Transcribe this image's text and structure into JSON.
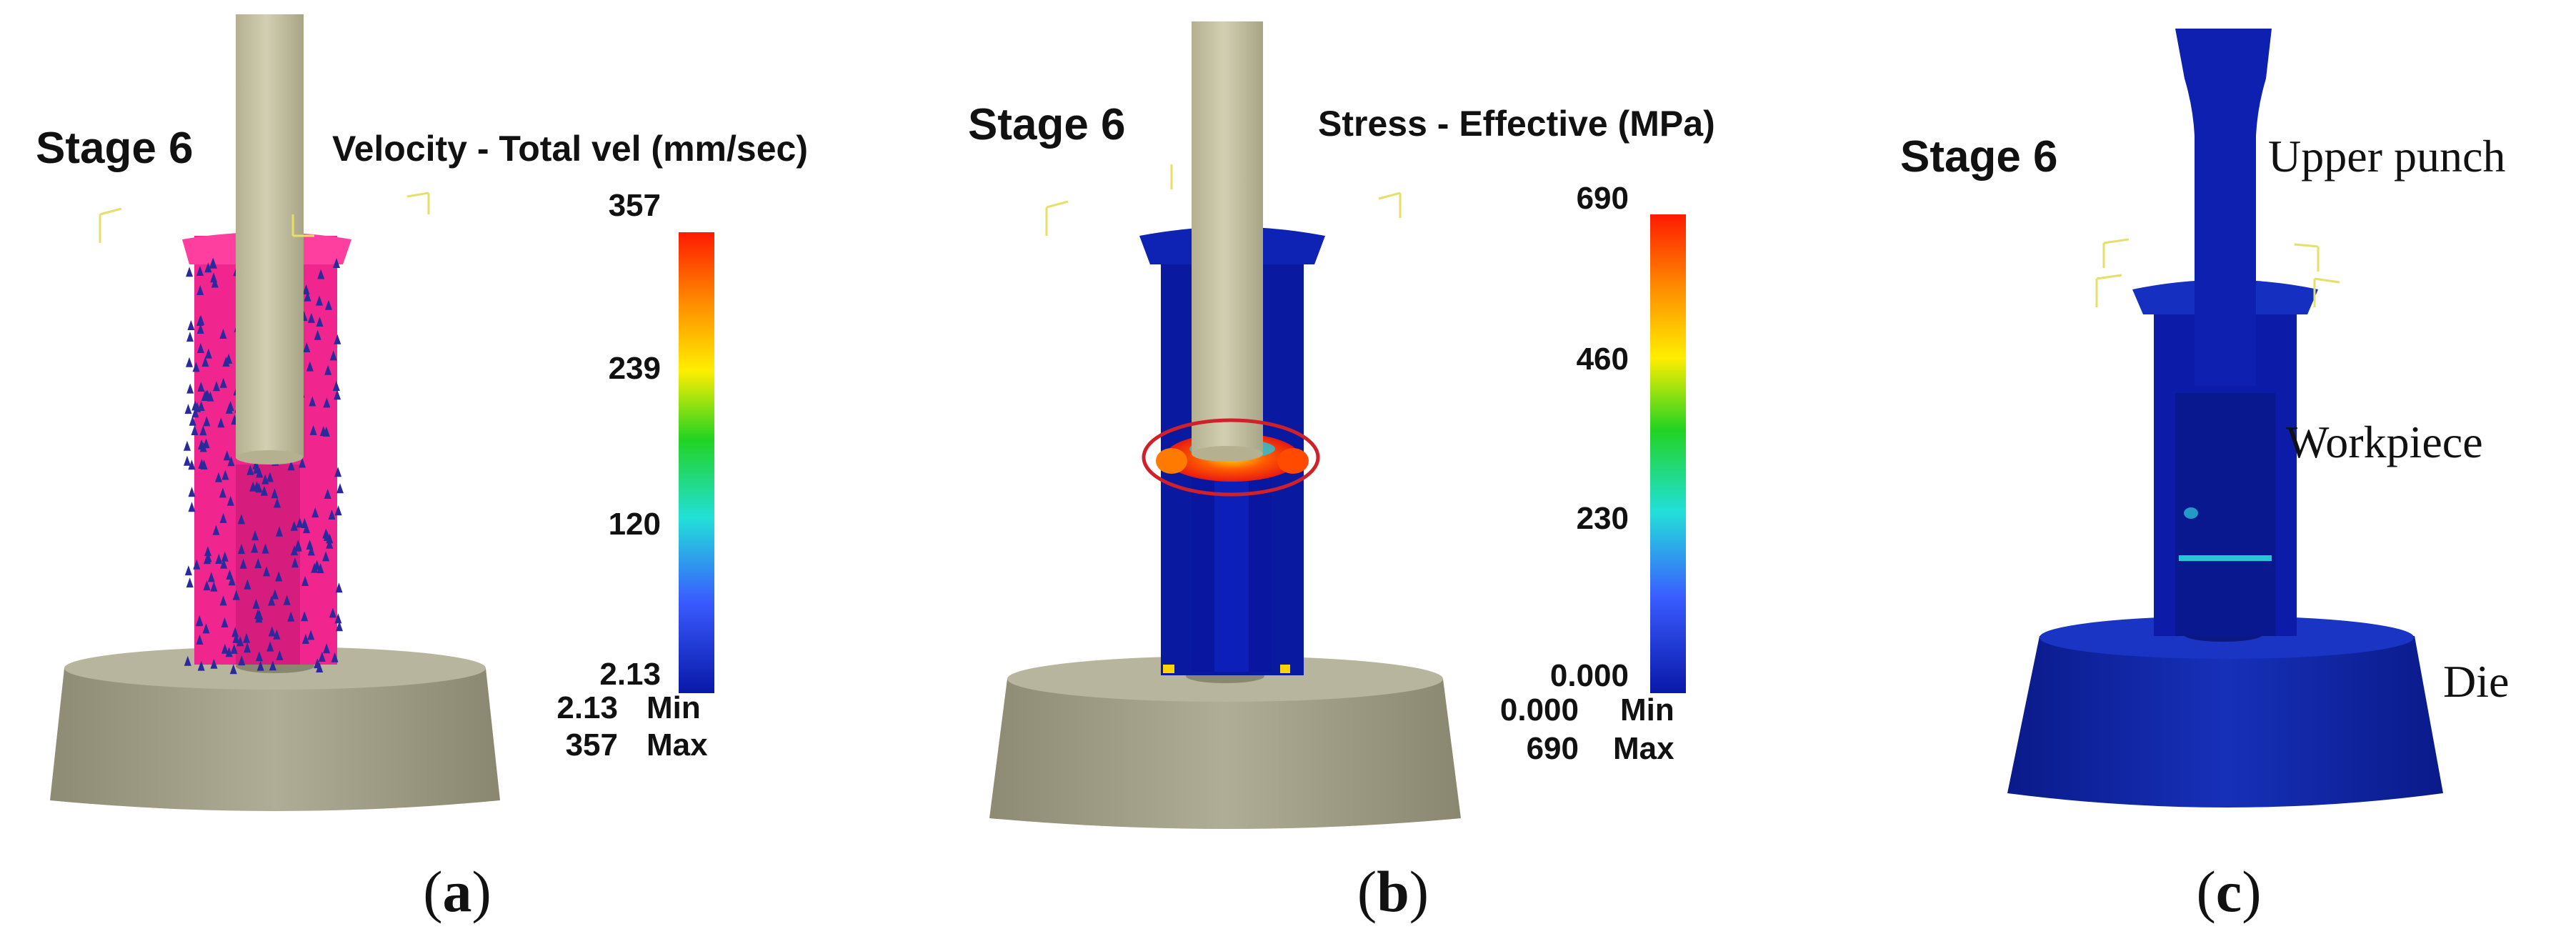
{
  "panels": [
    {
      "label": "a",
      "stage": "Stage 6",
      "quantity": "Velocity - Total vel (mm/sec)",
      "legend": {
        "ticks": [
          "357",
          "239",
          "120",
          "2.13"
        ],
        "min_value": "2.13",
        "min_label": "Min",
        "max_value": "357",
        "max_label": "Max"
      }
    },
    {
      "label": "b",
      "stage": "Stage 6",
      "quantity": "Stress - Effective (MPa)",
      "legend": {
        "ticks": [
          "690",
          "460",
          "230",
          "0.000"
        ],
        "min_value": "0.000",
        "min_label": "Min",
        "max_value": "690",
        "max_label": "Max"
      }
    },
    {
      "label": "c",
      "stage": "Stage 6",
      "parts": [
        "Upper punch",
        "Workpiece",
        "Die"
      ]
    }
  ],
  "colors": {
    "die": "#a9a68f",
    "punch": "#c7c3a5",
    "workpiece_velocity": "#f0268e",
    "velocity_vectors": "#2a2a9c",
    "workpiece_stress": "#0a1aa0",
    "highlight_circle": "#d0202a"
  }
}
